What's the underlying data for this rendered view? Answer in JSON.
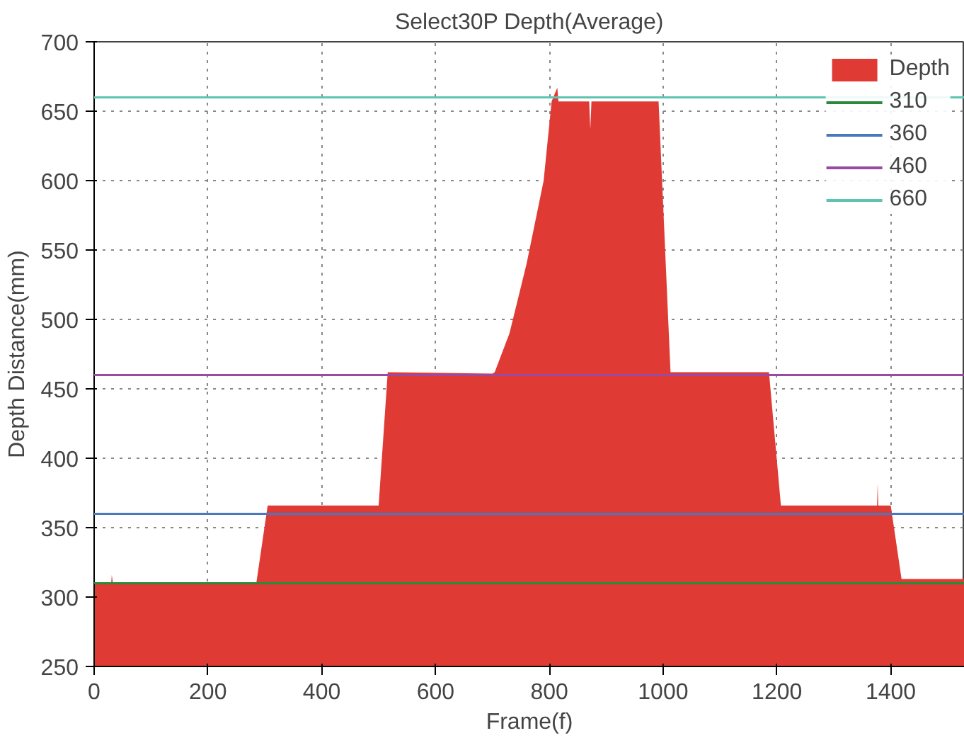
{
  "chart_data": {
    "type": "area",
    "title": "Select30P Depth(Average)",
    "xlabel": "Frame(f)",
    "ylabel": "Depth Distance(mm)",
    "xlim": [
      0,
      1530
    ],
    "ylim": [
      250,
      700
    ],
    "xticks": [
      0,
      200,
      400,
      600,
      800,
      1000,
      1200,
      1400
    ],
    "yticks": [
      250,
      300,
      350,
      400,
      450,
      500,
      550,
      600,
      650,
      700
    ],
    "grid": true,
    "legend": "top right",
    "series": [
      {
        "name": "Depth",
        "color": "#e03a35",
        "x": [
          0,
          30,
          31,
          33,
          285,
          305,
          500,
          516,
          700,
          704,
          730,
          760,
          790,
          804,
          814,
          816,
          818,
          870,
          872,
          874,
          990,
          992,
          1013,
          1186,
          1207,
          1376,
          1377,
          1378,
          1400,
          1419,
          1530
        ],
        "values": [
          310,
          310,
          316,
          310,
          310,
          366,
          366,
          462,
          461,
          462,
          490,
          540,
          600,
          657,
          667,
          657,
          657,
          657,
          637,
          657,
          657,
          657,
          462,
          462,
          366,
          366,
          382,
          366,
          366,
          313,
          313
        ]
      }
    ],
    "ref_lines": [
      {
        "axis": "y",
        "value": 310,
        "label": "310",
        "color": "#2a8a3a"
      },
      {
        "axis": "y",
        "value": 360,
        "label": "360",
        "color": "#4a78c0"
      },
      {
        "axis": "y",
        "value": 460,
        "label": "460",
        "color": "#9a4aa0"
      },
      {
        "axis": "y",
        "value": 660,
        "label": "660",
        "color": "#5ec4b0"
      }
    ]
  }
}
